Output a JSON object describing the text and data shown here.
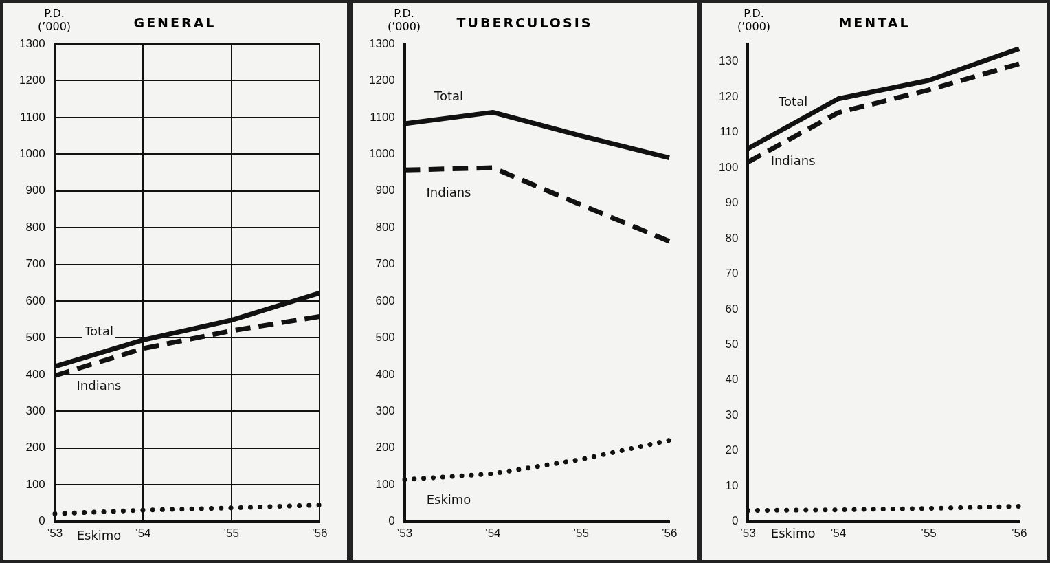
{
  "chart_data": [
    {
      "type": "line",
      "title": "GENERAL",
      "ylabel": "P.D. (’000)",
      "categories": [
        "’53",
        "’54",
        "’55",
        "’56"
      ],
      "ylim": [
        0,
        1300
      ],
      "yticks": [
        0,
        100,
        200,
        300,
        400,
        500,
        600,
        700,
        800,
        900,
        1000,
        1100,
        1200,
        1300
      ],
      "grid": true,
      "legend": false,
      "marker": "none",
      "series": [
        {
          "name": "Total",
          "color": "#111111",
          "line_style": "solid",
          "values": [
            422,
            494,
            548,
            622
          ]
        },
        {
          "name": "Indians",
          "color": "#111111",
          "line_style": "dashed",
          "values": [
            397,
            471,
            519,
            558
          ]
        },
        {
          "name": "Eskimo",
          "color": "#111111",
          "line_style": "dotted",
          "values": [
            21,
            31,
            37,
            45
          ]
        }
      ]
    },
    {
      "type": "line",
      "title": "TUBERCULOSIS",
      "ylabel": "P.D. (’000)",
      "categories": [
        "’53",
        "’54",
        "’55",
        "’56"
      ],
      "ylim": [
        0,
        1300
      ],
      "yticks": [
        0,
        100,
        200,
        300,
        400,
        500,
        600,
        700,
        800,
        900,
        1000,
        1100,
        1200,
        1300
      ],
      "legend": false,
      "marker": "none",
      "series": [
        {
          "name": "Total",
          "color": "#111111",
          "line_style": "solid",
          "values": [
            1083,
            1114,
            1050,
            990
          ]
        },
        {
          "name": "Indians",
          "color": "#111111",
          "line_style": "dashed",
          "values": [
            957,
            963,
            862,
            763
          ]
        },
        {
          "name": "Eskimo",
          "color": "#111111",
          "line_style": "dotted",
          "values": [
            114,
            130,
            169,
            221
          ]
        }
      ]
    },
    {
      "type": "line",
      "title": "MENTAL",
      "ylabel": "P.D. (’000)",
      "categories": [
        "’53",
        "’54",
        "’55",
        "’56"
      ],
      "ylim": [
        0,
        135
      ],
      "yticks": [
        0,
        10,
        20,
        30,
        40,
        50,
        60,
        70,
        80,
        90,
        100,
        110,
        120,
        130
      ],
      "legend": false,
      "marker": "none",
      "series": [
        {
          "name": "Total",
          "color": "#111111",
          "line_style": "solid",
          "values": [
            105.4,
            119.5,
            124.7,
            133.7
          ]
        },
        {
          "name": "Indians",
          "color": "#111111",
          "line_style": "dashed",
          "values": [
            101.6,
            115.6,
            122,
            129.4
          ]
        },
        {
          "name": "Eskimo",
          "color": "#111111",
          "line_style": "dotted",
          "values": [
            3.1,
            3.3,
            3.7,
            4.3
          ]
        }
      ]
    }
  ]
}
